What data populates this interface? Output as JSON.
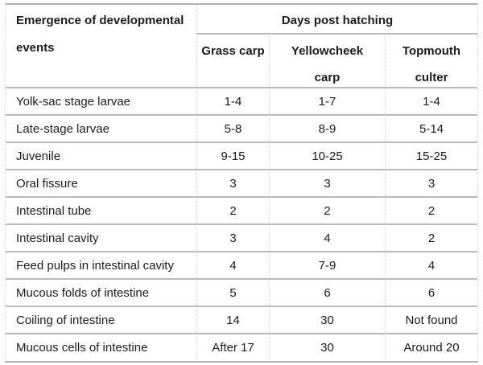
{
  "table": {
    "corner_header": {
      "line1": "Emergence of developmental",
      "line2": "events"
    },
    "group_header": "Days post hatching",
    "col_headers": [
      {
        "line1": "Grass carp",
        "line2": ""
      },
      {
        "line1": "Yellowcheek",
        "line2": "carp"
      },
      {
        "line1": "Topmouth",
        "line2": "culter"
      }
    ],
    "rows": [
      {
        "label": "Yolk-sac stage larvae",
        "values": [
          "1-4",
          "1-7",
          "1-4"
        ]
      },
      {
        "label": "Late-stage larvae",
        "values": [
          "5-8",
          "8-9",
          "5-14"
        ]
      },
      {
        "label": "Juvenile",
        "values": [
          "9-15",
          "10-25",
          "15-25"
        ]
      },
      {
        "label": "Oral fissure",
        "values": [
          "3",
          "3",
          "3"
        ]
      },
      {
        "label": "Intestinal tube",
        "values": [
          "2",
          "2",
          "2"
        ]
      },
      {
        "label": "Intestinal cavity",
        "values": [
          "3",
          "4",
          "2"
        ]
      },
      {
        "label": "Feed pulps in intestinal cavity",
        "values": [
          "4",
          "7-9",
          "4"
        ]
      },
      {
        "label": "Mucous folds of intestine",
        "values": [
          "5",
          "6",
          "6"
        ]
      },
      {
        "label": "Coiling of intestine",
        "values": [
          "14",
          "30",
          "Not found"
        ]
      },
      {
        "label": "Mucous cells of intestine",
        "values": [
          "After 17",
          "30",
          "Around 20"
        ]
      }
    ]
  },
  "colors": {
    "grid_horizontal": "#b9bcbe",
    "grid_vertical": "#d9d9d9",
    "text": "#1c1c1c",
    "background": "#ffffff"
  }
}
